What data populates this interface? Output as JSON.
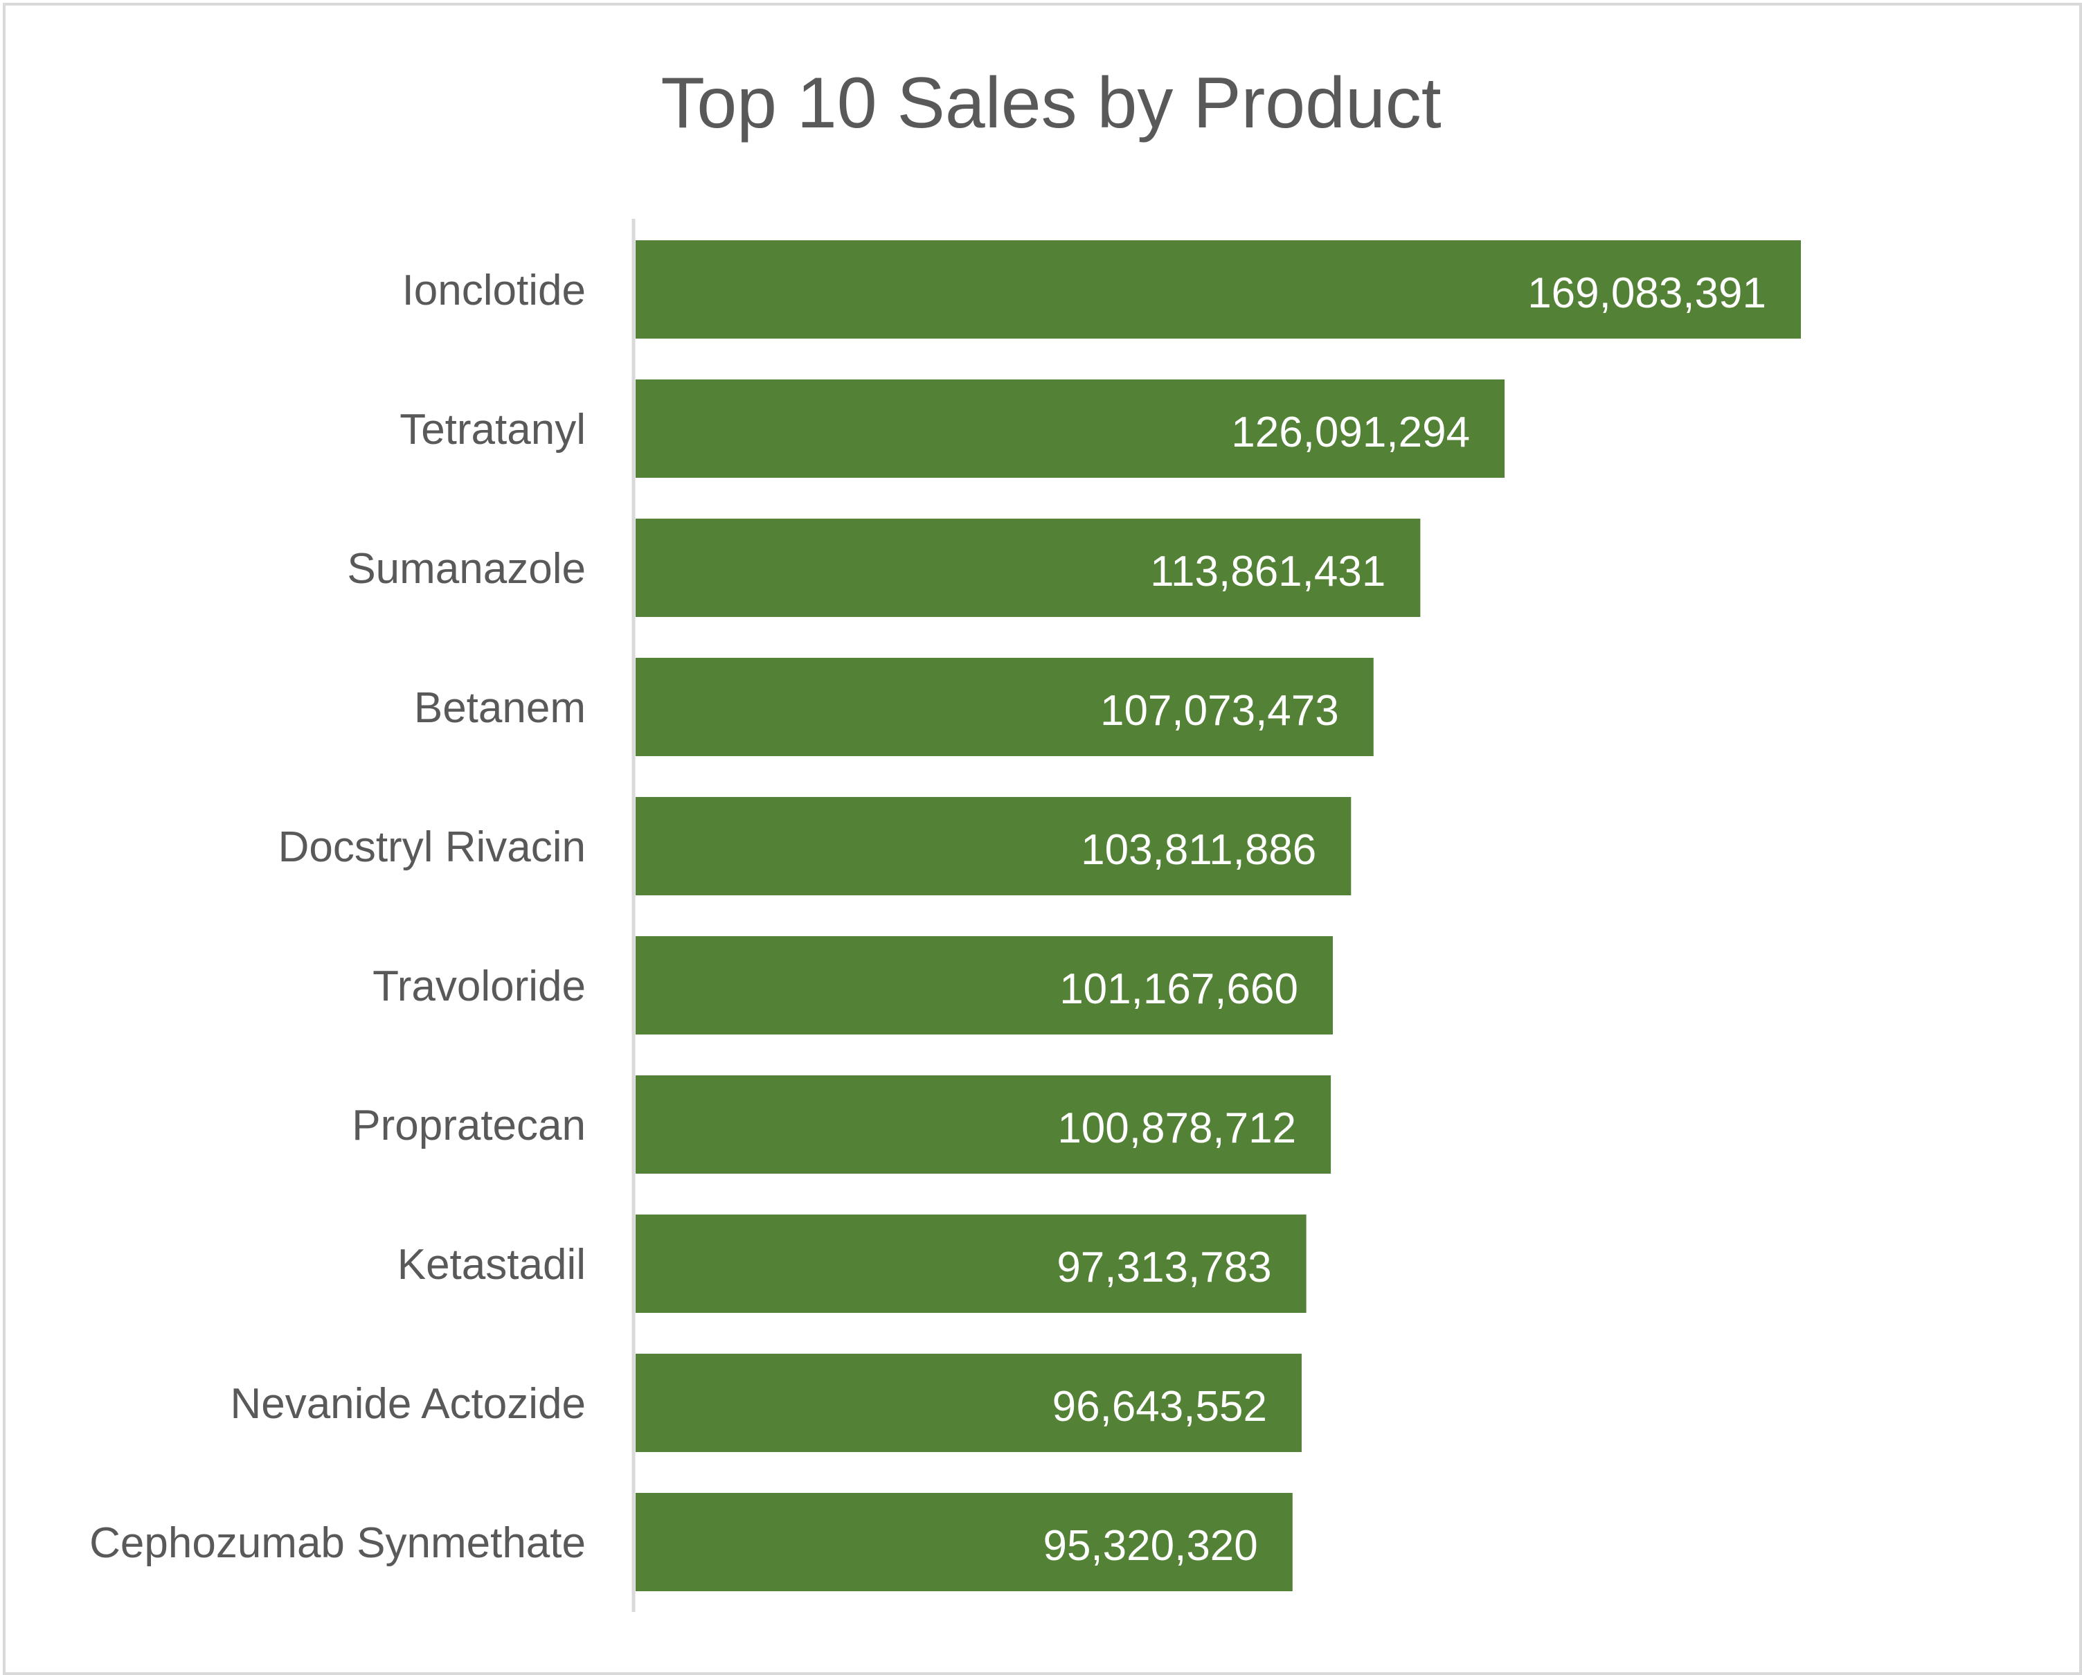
{
  "chart_data": {
    "type": "bar",
    "orientation": "horizontal",
    "title": "Top 10 Sales by Product",
    "xlabel": "",
    "ylabel": "",
    "xlim": [
      0,
      169083391
    ],
    "grid": false,
    "legend": "none",
    "bar_color": "#538135",
    "categories": [
      "Ionclotide",
      "Tetratanyl",
      "Sumanazole",
      "Betanem",
      "Docstryl Rivacin",
      "Travoloride",
      "Propratecan",
      "Ketastadil",
      "Nevanide Actozide",
      "Cephozumab Synmethate"
    ],
    "values": [
      169083391,
      126091294,
      113861431,
      107073473,
      103811886,
      101167660,
      100878712,
      97313783,
      96643552,
      95320320
    ],
    "data_labels": [
      "169,083,391",
      "126,091,294",
      "113,861,431",
      "107,073,473",
      "103,811,886",
      "101,167,660",
      "100,878,712",
      "97,313,783",
      "96,643,552",
      "95,320,320"
    ]
  }
}
